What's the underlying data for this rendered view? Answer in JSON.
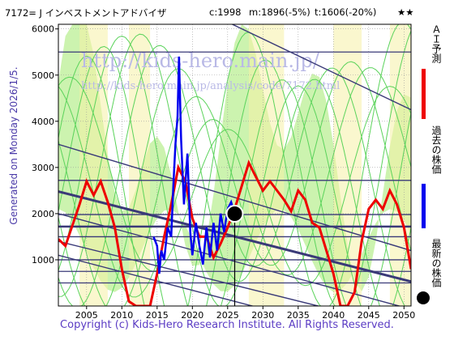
{
  "header": {
    "code_name": "7172= J インベストメントアドバイザ",
    "current": "c:1998",
    "median": "m:1896(-5%)",
    "target": "t:1606(-20%)",
    "stars": "★★"
  },
  "side_text": "Generated on Monday 2026/1/5.",
  "footer": "Copyright (c) Kids-Hero Research Institute. All Rights Reserved.",
  "watermark": {
    "line1": "http://kids-hero.main.jp/",
    "line2": "http://kids-hero.main.jp/analysis/code/7172.html"
  },
  "legend": [
    {
      "label": "ＡＩ予測",
      "color": "#ee0000"
    },
    {
      "label": "過去の株価",
      "color": "#0000ee"
    },
    {
      "label": "最新の株価",
      "color": "#000000"
    }
  ],
  "colors": {
    "ai": "#ee0000",
    "past": "#0000ee",
    "band_green": "#5bd35b",
    "band_fill": "#c6f2a6",
    "band_yellow": "#f5f0a6",
    "trend": "#3a3a78"
  },
  "chart_data": {
    "type": "line",
    "xlim": [
      2001,
      2051
    ],
    "ylim": [
      0,
      6100
    ],
    "x_ticks": [
      2005,
      2010,
      2015,
      2020,
      2025,
      2030,
      2035,
      2040,
      2045,
      2050
    ],
    "y_ticks": [
      1000,
      2000,
      3000,
      4000,
      5000,
      6000
    ],
    "grid": true,
    "horizontal_lines": [
      5500,
      2720,
      1980,
      1720,
      1500,
      1000,
      750,
      500
    ],
    "trend_lines": [
      {
        "p1": [
          2001,
          7900
        ],
        "p2": [
          2051,
          4250
        ]
      },
      {
        "p1": [
          2001,
          3500
        ],
        "p2": [
          2051,
          1200
        ]
      },
      {
        "p1": [
          2001,
          2480
        ],
        "p2": [
          2051,
          530
        ],
        "bold": true
      },
      {
        "p1": [
          2001,
          2000
        ],
        "p2": [
          2051,
          -70
        ]
      },
      {
        "p1": [
          2001,
          1400
        ],
        "p2": [
          2051,
          -500
        ]
      },
      {
        "p1": [
          2001,
          1100
        ],
        "p2": [
          2051,
          -900
        ]
      }
    ],
    "past_price": {
      "x": [
        2014.5,
        2015,
        2015.3,
        2015.6,
        2016,
        2016.5,
        2017,
        2017.3,
        2017.6,
        2017.9,
        2018.1,
        2018.4,
        2018.8,
        2019.3,
        2019.7,
        2020,
        2020.5,
        2021,
        2021.5,
        2022,
        2022.5,
        2023,
        2023.5,
        2024,
        2024.5,
        2025,
        2025.5,
        2026
      ],
      "y": [
        1500,
        1300,
        700,
        1200,
        1000,
        1700,
        1500,
        2600,
        3500,
        4100,
        5400,
        3600,
        2200,
        3300,
        1600,
        1100,
        1800,
        1300,
        900,
        1700,
        1050,
        1800,
        1200,
        2000,
        1600,
        2100,
        2250,
        1998
      ]
    },
    "ai_forecast": {
      "x": [
        2001,
        2002,
        2003,
        2004,
        2005,
        2006,
        2007,
        2008,
        2009,
        2010,
        2011,
        2012,
        2013,
        2014,
        2015,
        2016,
        2017,
        2018,
        2019,
        2020,
        2021,
        2022,
        2023,
        2024,
        2025,
        2026,
        2027,
        2028,
        2029,
        2030,
        2031,
        2032,
        2033,
        2034,
        2035,
        2036,
        2037,
        2038,
        2039,
        2040,
        2041,
        2042,
        2043,
        2044,
        2045,
        2046,
        2047,
        2048,
        2049,
        2050,
        2051
      ],
      "y": [
        1450,
        1300,
        1750,
        2200,
        2700,
        2400,
        2700,
        2250,
        1700,
        800,
        100,
        0,
        0,
        0,
        700,
        1500,
        2200,
        3000,
        2700,
        1900,
        1500,
        1500,
        1050,
        1350,
        1700,
        2100,
        2600,
        3100,
        2800,
        2500,
        2700,
        2500,
        2300,
        2050,
        2500,
        2300,
        1800,
        1700,
        1200,
        700,
        0,
        0,
        300,
        1400,
        2100,
        2300,
        2100,
        2500,
        2200,
        1700,
        800
      ]
    },
    "latest_price": {
      "x": 2026,
      "y": 1998
    }
  }
}
